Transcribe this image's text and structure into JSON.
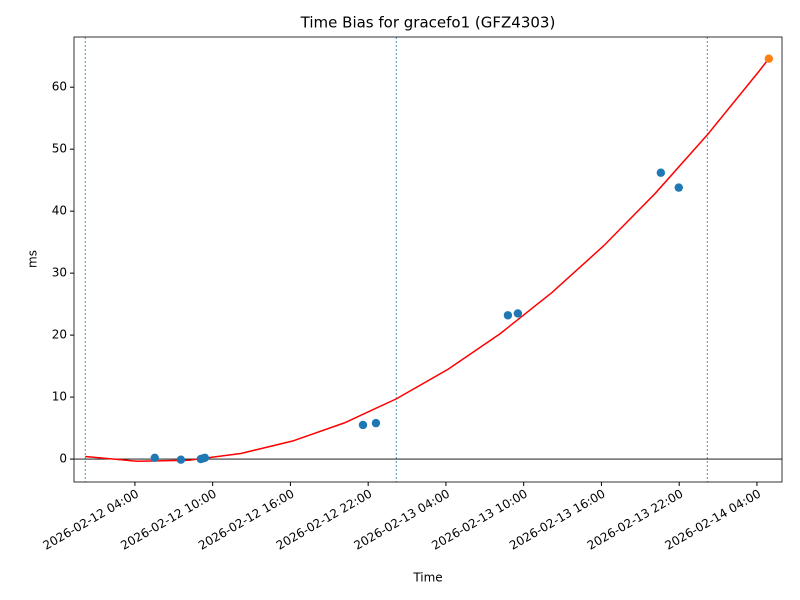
{
  "chart_data": {
    "type": "scatter",
    "title": "Time Bias for gracefo1 (GFZ4303)",
    "x_label": "Time",
    "y_label": "ms",
    "xlim": [
      "2026-02-11 23:18",
      "2026-02-14 05:56"
    ],
    "xticks": [
      "2026-02-12 04:00",
      "2026-02-12 10:00",
      "2026-02-12 16:00",
      "2026-02-12 22:00",
      "2026-02-13 04:00",
      "2026-02-13 10:00",
      "2026-02-13 16:00",
      "2026-02-13 22:00",
      "2026-02-14 04:00"
    ],
    "ylim": [
      -3.7,
      68.1
    ],
    "yticks": [
      0,
      10,
      20,
      30,
      40,
      50,
      60
    ],
    "hline": 0,
    "hline_color": "#000000",
    "vlines": [
      "2026-02-12 00:10",
      "2026-02-13 00:10",
      "2026-02-14 00:10"
    ],
    "vline_color": "#1f77b4",
    "series": [
      {
        "mode": "line",
        "color": "#ff0000",
        "x": [
          "2026-02-12 00:10",
          "2026-02-12 04:10",
          "2026-02-12 08:10",
          "2026-02-12 12:10",
          "2026-02-12 16:10",
          "2026-02-12 20:10",
          "2026-02-13 00:10",
          "2026-02-13 04:10",
          "2026-02-13 08:10",
          "2026-02-13 12:10",
          "2026-02-13 16:10",
          "2026-02-13 20:10",
          "2026-02-14 00:10",
          "2026-02-14 04:10",
          "2026-02-14 04:55"
        ],
        "values": [
          0.41,
          -0.35,
          -0.19,
          0.9,
          2.91,
          5.84,
          9.71,
          14.49,
          20.2,
          26.84,
          34.4,
          42.9,
          52.3,
          62.6,
          64.6
        ]
      },
      {
        "mode": "scatter",
        "color": "#1f77b4",
        "x": [
          "2026-02-12 05:32",
          "2026-02-12 07:33",
          "2026-02-12 09:05",
          "2026-02-12 09:15",
          "2026-02-12 09:24",
          "2026-02-12 21:36",
          "2026-02-12 22:36",
          "2026-02-13 08:47",
          "2026-02-13 09:33",
          "2026-02-13 20:35",
          "2026-02-13 21:58"
        ],
        "values": [
          0.2,
          -0.1,
          0.0,
          0.1,
          0.2,
          5.5,
          5.8,
          23.2,
          23.5,
          46.2,
          43.8
        ]
      },
      {
        "mode": "scatter",
        "color": "#ff7f0e",
        "x": [
          "2026-02-14 04:55"
        ],
        "values": [
          64.6
        ]
      }
    ]
  }
}
